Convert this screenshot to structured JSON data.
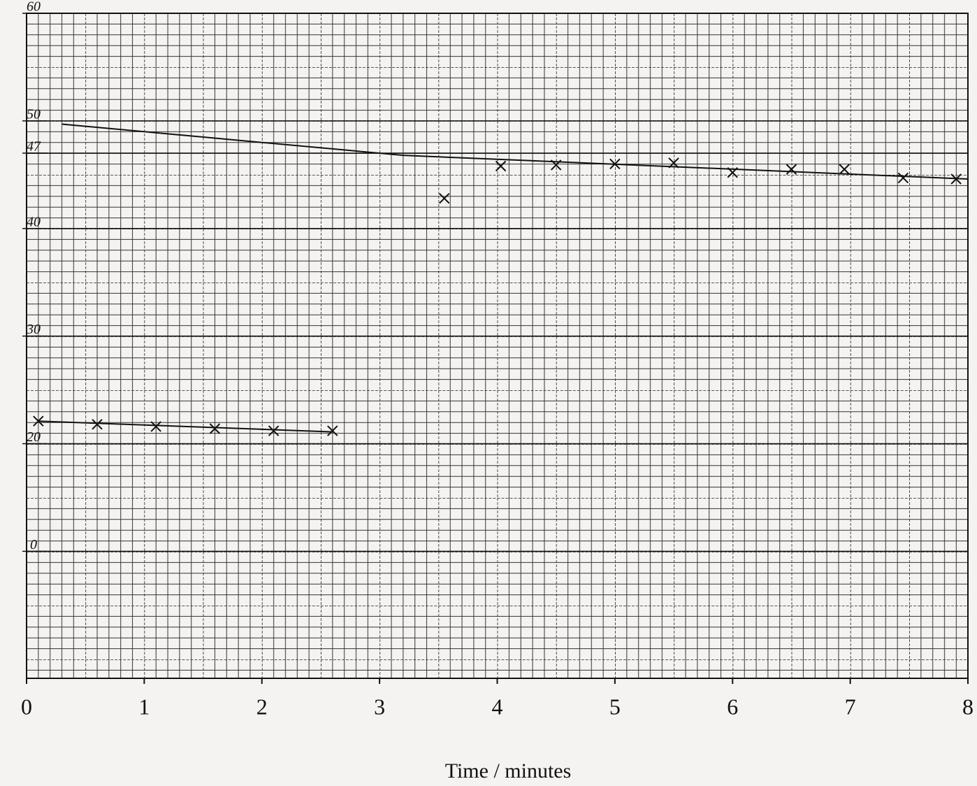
{
  "chart_data": {
    "type": "scatter",
    "x_label": "Time / minutes",
    "xlim": [
      0,
      8
    ],
    "xticks": [
      0,
      1,
      2,
      3,
      4,
      5,
      6,
      7,
      8
    ],
    "ylim": [
      -1.8,
      60
    ],
    "yticks": [
      {
        "value": 10,
        "label": "0"
      },
      20,
      30,
      40,
      47,
      50,
      60
    ],
    "grid": true,
    "series": [
      {
        "color": "#111111",
        "marker": "x",
        "x": [
          0.1,
          0.6,
          1.1,
          1.6,
          2.1,
          2.6
        ],
        "values": [
          22.1,
          21.8,
          21.6,
          21.4,
          21.2,
          21.2
        ]
      },
      {
        "color": "#111111",
        "marker": "x",
        "x": [
          3.55,
          4.03,
          4.5,
          5.0,
          5.5,
          6.0,
          6.5,
          6.95,
          7.45,
          7.9
        ],
        "values": [
          42.8,
          45.8,
          45.9,
          46.0,
          46.1,
          45.2,
          45.5,
          45.5,
          44.7,
          44.6
        ]
      }
    ],
    "trend_lines": [
      {
        "color": "#111111",
        "x": [
          0.1,
          2.6
        ],
        "values": [
          22.1,
          21.1
        ]
      },
      {
        "color": "#111111",
        "x": [
          0.3,
          3.2,
          8
        ],
        "values": [
          49.7,
          46.8,
          44.6
        ]
      }
    ]
  }
}
